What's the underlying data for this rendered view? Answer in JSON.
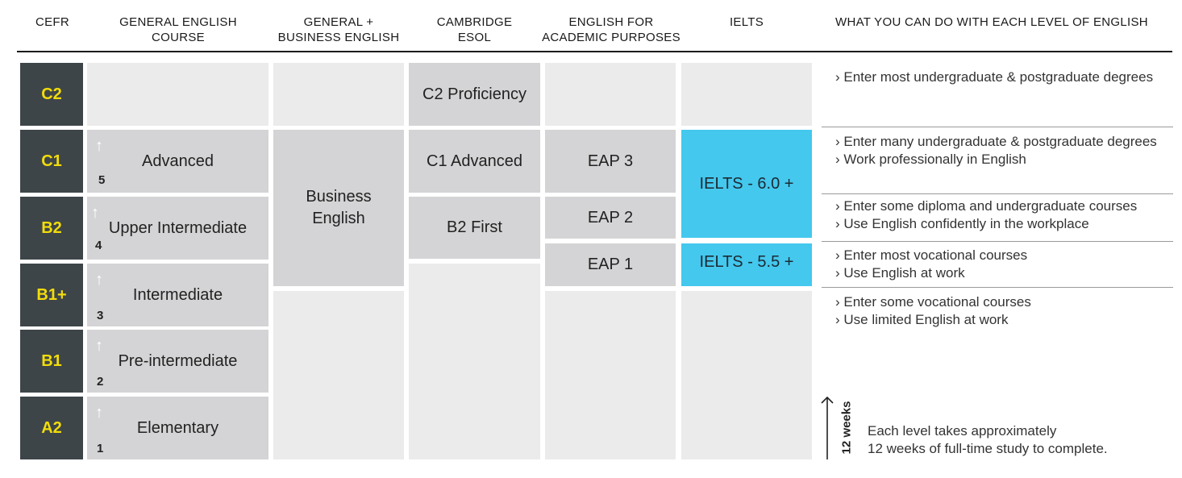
{
  "headers": {
    "cefr": "CEFR",
    "general_l1": "GENERAL ENGLISH",
    "general_l2": "COURSE",
    "business_l1": "GENERAL +",
    "business_l2": "BUSINESS ENGLISH",
    "cambridge_l1": "CAMBRIDGE",
    "cambridge_l2": "ESOL",
    "eap_l1": "ENGLISH FOR",
    "eap_l2": "ACADEMIC PURPOSES",
    "ielts": "IELTS",
    "what": "WHAT YOU CAN DO WITH EACH LEVEL OF ENGLISH"
  },
  "cefr_levels": [
    "C2",
    "C1",
    "B2",
    "B1+",
    "B1",
    "A2"
  ],
  "general_course": [
    {
      "num": "5",
      "label": "Advanced"
    },
    {
      "num": "4",
      "label": "Upper Intermediate"
    },
    {
      "num": "3",
      "label": "Intermediate"
    },
    {
      "num": "2",
      "label": "Pre-intermediate"
    },
    {
      "num": "1",
      "label": "Elementary"
    }
  ],
  "arrow_glyph": "↑",
  "business_l1": "Business",
  "business_l2": "English",
  "cambridge": [
    "C2 Proficiency",
    "C1 Advanced",
    "B2 First"
  ],
  "eap": [
    "EAP 3",
    "EAP 2",
    "EAP 1"
  ],
  "ielts": [
    "IELTS - 6.0 +",
    "IELTS - 5.5 +"
  ],
  "descriptions": {
    "c2": [
      "› Enter most undergraduate & postgraduate degrees"
    ],
    "c1": [
      "› Enter many undergraduate & postgraduate degrees",
      "› Work professionally in English"
    ],
    "b2": [
      "› Enter some diploma and undergraduate courses",
      "› Use English confidently in the workplace"
    ],
    "b1p": [
      "› Enter most vocational courses",
      "› Use English at work"
    ],
    "b1": [
      "› Enter some vocational courses",
      "› Use limited English at work"
    ]
  },
  "weeks_label": "12 weeks",
  "note_l1": "Each level takes approximately",
  "note_l2": "12 weeks of full-time study to complete.",
  "colors": {
    "cefr_bg": "#3e4549",
    "cefr_text": "#f2dc0a",
    "ielts_blue": "#44c8ee",
    "cell_grey": "#d4d4d6",
    "empty_grey": "#ebebec"
  }
}
